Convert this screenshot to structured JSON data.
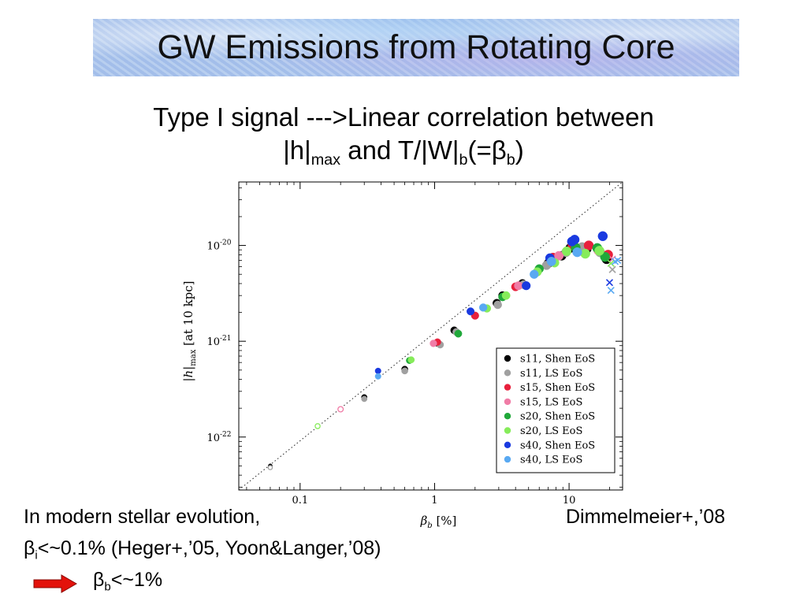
{
  "title": "GW Emissions from Rotating Core",
  "subtitle": {
    "line1": "Type I signal --->Linear correlation between",
    "line2": {
      "a": "|h|",
      "a_sub": "max",
      "b": " and T/|W|",
      "b_sub": "b",
      "c": "(=β",
      "c_sub": "b",
      "d": ")"
    }
  },
  "chart_data": {
    "type": "scatter",
    "xscale": "log",
    "yscale": "log",
    "xlabel": {
      "main": "β",
      "sub": "b",
      "rest": " [%]"
    },
    "ylabel": {
      "main": "|h|",
      "sub": "max",
      "rest": " [at 10 kpc]"
    },
    "xlim": [
      0.035,
      25
    ],
    "ylim": [
      2.8e-23,
      4.6e-20
    ],
    "x_ticks": [
      {
        "value": 0.1,
        "label": "0.1"
      },
      {
        "value": 1,
        "label": "1"
      },
      {
        "value": 10,
        "label": "10"
      }
    ],
    "y_ticks": [
      {
        "value": 1e-22,
        "base": "10",
        "exp": "-22"
      },
      {
        "value": 1e-21,
        "base": "10",
        "exp": "-21"
      },
      {
        "value": 1e-20,
        "base": "10",
        "exp": "-20"
      }
    ],
    "reference_line": {
      "style": "dotted",
      "points": [
        [
          0.035,
          2.8e-23
        ],
        [
          25,
          4.6e-20
        ]
      ]
    },
    "legend_position": "bottom-right",
    "series": [
      {
        "name": "s11, Shen EoS",
        "color": "#000000",
        "points": [
          [
            0.06,
            5e-23
          ],
          [
            0.3,
            2.6e-22
          ],
          [
            0.6,
            5.1e-22
          ],
          [
            1.05,
            9.6e-22
          ],
          [
            1.4,
            1.3e-21
          ],
          [
            2.9,
            2.5e-21
          ],
          [
            3.2,
            3e-21
          ],
          [
            4.5,
            4e-21
          ],
          [
            7,
            6.5e-21
          ],
          [
            8.8,
            7.8e-21
          ],
          [
            10.2,
            9.4e-21
          ],
          [
            13.5,
            9.2e-21
          ],
          [
            19,
            7.2e-21
          ]
        ]
      },
      {
        "name": "s11, LS EoS",
        "color": "#a0a0a0",
        "points": [
          [
            0.06,
            4.8e-23
          ],
          [
            0.3,
            2.5e-22
          ],
          [
            0.6,
            4.9e-22
          ],
          [
            1.1,
            9.2e-22
          ],
          [
            1.45,
            1.25e-21
          ],
          [
            2.95,
            2.4e-21
          ],
          [
            4.6,
            3.9e-21
          ],
          [
            6.8,
            6.2e-21
          ],
          [
            9.5,
            8.5e-21
          ],
          [
            12.5,
            9.6e-21
          ],
          [
            17,
            8.5e-21
          ],
          [
            21,
            5.6e-21
          ]
        ]
      },
      {
        "name": "s15, Shen EoS",
        "color": "#e8203c",
        "points": [
          [
            1.05,
            9.8e-22
          ],
          [
            2,
            1.85e-21
          ],
          [
            4,
            3.7e-21
          ],
          [
            7.6,
            7.5e-21
          ],
          [
            10.6,
            1e-20
          ],
          [
            14,
            1e-20
          ],
          [
            19.5,
            8e-21
          ]
        ]
      },
      {
        "name": "s15, LS EoS",
        "color": "#f07ca6",
        "points": [
          [
            0.2,
            1.95e-22
          ],
          [
            0.98,
            9.5e-22
          ],
          [
            4.2,
            3.8e-21
          ],
          [
            8.4,
            7.8e-21
          ],
          [
            16.5,
            8.9e-21
          ],
          [
            21,
            7.2e-21
          ]
        ]
      },
      {
        "name": "s20, Shen EoS",
        "color": "#20a83a",
        "points": [
          [
            0.65,
            6.3e-22
          ],
          [
            1.5,
            1.2e-21
          ],
          [
            3.2,
            2.9e-21
          ],
          [
            6,
            5.7e-21
          ],
          [
            11.2,
            9.5e-21
          ],
          [
            16.2,
            9.4e-21
          ],
          [
            18.5,
            7.6e-21
          ]
        ]
      },
      {
        "name": "s20, LS EoS",
        "color": "#86ec5a",
        "points": [
          [
            0.135,
            1.3e-22
          ],
          [
            0.67,
            6.4e-22
          ],
          [
            2.45,
            2.2e-21
          ],
          [
            3.4,
            3e-21
          ],
          [
            5.8,
            5.3e-21
          ],
          [
            7.8,
            6.6e-21
          ],
          [
            9.6,
            8.7e-21
          ],
          [
            13.2,
            8.2e-21
          ],
          [
            16.8,
            8.8e-21
          ],
          [
            20.5,
            6.5e-21
          ]
        ]
      },
      {
        "name": "s40, Shen EoS",
        "color": "#1a3ae0",
        "points": [
          [
            0.38,
            4.9e-22
          ],
          [
            1.85,
            2.05e-21
          ],
          [
            4.8,
            3.8e-21
          ],
          [
            7.2,
            7.4e-21
          ],
          [
            10.5,
            1.1e-20
          ],
          [
            11,
            1.15e-20
          ],
          [
            17.8,
            1.25e-20
          ],
          [
            20,
            4.1e-21
          ]
        ]
      },
      {
        "name": "s40, LS EoS",
        "color": "#59a9f2",
        "points": [
          [
            0.38,
            4.3e-22
          ],
          [
            2.3,
            2.25e-21
          ],
          [
            5.5,
            5e-21
          ],
          [
            7.4,
            6.8e-21
          ],
          [
            11.5,
            8.5e-21
          ],
          [
            20.5,
            3.4e-21
          ],
          [
            22,
            6.8e-21
          ],
          [
            23,
            7e-21
          ]
        ]
      }
    ]
  },
  "bottom": {
    "line1": "In modern stellar evolution,",
    "citation": "Dimmelmeier+,’08",
    "line2": {
      "a": "β",
      "a_sub": "i",
      "b": "<~0.1% (Heger+,’05, Yoon&Langer,’08)"
    },
    "line3": {
      "a": "β",
      "a_sub": "b",
      "b": "<~1%"
    },
    "arrow_color": "#e3120b"
  }
}
